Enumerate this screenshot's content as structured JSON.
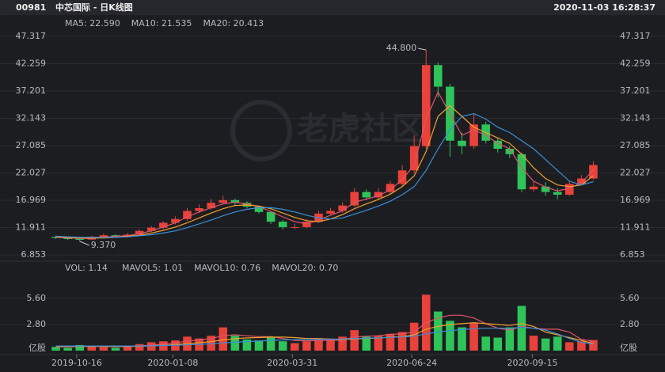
{
  "header": {
    "code": "00981",
    "title": "中芯国际 - 日K线图",
    "timestamp": "2020-11-03 16:28:37"
  },
  "watermark": "老虎社区",
  "chart_data": [
    {
      "type": "candlestick",
      "ylim": [
        5.69,
        48.48
      ],
      "yticks": [
        47.317,
        42.259,
        37.201,
        32.143,
        27.085,
        22.027,
        16.969,
        11.911,
        6.853
      ],
      "up_color": "#e8423a",
      "down_color": "#2fc45a",
      "open": [
        10.2,
        10.0,
        9.8,
        9.7,
        10.2,
        10.5,
        10.3,
        10.6,
        11.3,
        11.9,
        12.8,
        13.5,
        15.0,
        15.5,
        16.5,
        17.0,
        16.5,
        15.8,
        14.8,
        13.0,
        12.0,
        12.0,
        13.0,
        14.5,
        15.0,
        16.0,
        18.5,
        17.5,
        18.5,
        20.0,
        22.5,
        27.0,
        42.0,
        38.0,
        28.0,
        27.0,
        31.0,
        28.0,
        26.5,
        25.5,
        19.0,
        19.5,
        18.5,
        18.0,
        20.0,
        21.0
      ],
      "high": [
        10.4,
        10.2,
        9.9,
        10.4,
        10.8,
        10.7,
        10.9,
        11.6,
        12.2,
        13.1,
        14.0,
        15.5,
        16.2,
        17.2,
        17.8,
        17.3,
        16.8,
        16.0,
        15.0,
        13.3,
        12.6,
        13.5,
        15.0,
        15.6,
        16.6,
        19.2,
        19.0,
        19.2,
        20.6,
        23.5,
        29.0,
        44.8,
        42.5,
        38.5,
        29.5,
        33.0,
        31.5,
        28.5,
        27.0,
        25.8,
        20.5,
        20.3,
        19.2,
        20.6,
        21.6,
        24.2
      ],
      "low": [
        9.8,
        9.6,
        9.37,
        9.6,
        10.0,
        10.1,
        10.2,
        10.4,
        11.1,
        11.6,
        12.5,
        13.2,
        14.6,
        15.2,
        16.2,
        16.0,
        15.5,
        14.5,
        12.6,
        11.6,
        11.6,
        11.8,
        12.8,
        14.2,
        14.7,
        15.7,
        17.0,
        17.2,
        18.1,
        19.6,
        22.0,
        26.5,
        36.0,
        25.0,
        25.5,
        26.5,
        27.5,
        25.8,
        24.8,
        18.5,
        18.6,
        17.8,
        17.2,
        17.8,
        19.8,
        20.8
      ],
      "close": [
        10.0,
        9.8,
        9.7,
        10.2,
        10.5,
        10.3,
        10.6,
        11.3,
        11.9,
        12.8,
        13.5,
        15.0,
        15.5,
        16.5,
        17.0,
        16.5,
        15.8,
        14.8,
        13.0,
        12.0,
        12.0,
        13.0,
        14.5,
        15.0,
        16.0,
        18.5,
        17.5,
        18.5,
        20.0,
        22.5,
        27.0,
        42.0,
        38.0,
        28.0,
        27.0,
        31.0,
        28.0,
        26.5,
        25.5,
        19.0,
        19.5,
        18.5,
        18.0,
        20.0,
        21.0,
        23.5
      ],
      "series": [
        {
          "name": "MA5: 22.590",
          "color": "#e05568",
          "values": [
            10.1,
            10.0,
            9.9,
            9.9,
            10.1,
            10.3,
            10.4,
            10.8,
            11.3,
            12.0,
            12.8,
            13.9,
            14.8,
            15.6,
            16.3,
            16.6,
            16.3,
            15.8,
            14.9,
            13.9,
            13.0,
            12.6,
            13.3,
            14.2,
            15.0,
            16.6,
            17.2,
            17.8,
            18.9,
            20.8,
            23.5,
            32.0,
            37.0,
            33.0,
            29.0,
            30.0,
            29.0,
            27.5,
            26.5,
            23.0,
            20.5,
            19.4,
            18.7,
            19.2,
            20.2,
            22.59
          ]
        },
        {
          "name": "MA10: 21.535",
          "color": "#f0a030",
          "values": [
            10.2,
            10.1,
            10.0,
            10.0,
            10.0,
            10.1,
            10.3,
            10.5,
            10.9,
            11.4,
            12.0,
            12.8,
            13.7,
            14.6,
            15.4,
            16.0,
            16.1,
            15.9,
            15.4,
            14.6,
            13.8,
            13.2,
            13.0,
            13.5,
            14.3,
            15.4,
            16.3,
            17.1,
            18.1,
            19.5,
            21.5,
            26.0,
            32.5,
            34.5,
            32.5,
            30.5,
            29.5,
            28.5,
            27.5,
            25.5,
            23.0,
            21.0,
            19.8,
            19.5,
            19.8,
            21.535
          ]
        },
        {
          "name": "MA20: 20.413",
          "color": "#3a8fd8",
          "values": [
            10.3,
            10.2,
            10.1,
            10.1,
            10.1,
            10.1,
            10.2,
            10.4,
            10.6,
            10.9,
            11.3,
            11.9,
            12.6,
            13.3,
            14.1,
            14.8,
            15.3,
            15.6,
            15.6,
            15.3,
            14.8,
            14.2,
            13.7,
            13.5,
            13.7,
            14.4,
            15.1,
            15.9,
            16.8,
            18.0,
            19.5,
            22.5,
            26.5,
            30.0,
            32.5,
            33.0,
            32.0,
            30.5,
            29.5,
            28.0,
            26.5,
            24.5,
            22.5,
            20.5,
            19.8,
            20.413
          ]
        }
      ],
      "annotations": [
        {
          "value": 44.8,
          "label": "44.800"
        },
        {
          "value": 9.37,
          "label": "9.370"
        }
      ]
    },
    {
      "type": "bar",
      "legend_title": "VOL: 1.14",
      "ylim": [
        0,
        7.9
      ],
      "yticks": [
        {
          "value": 5.6,
          "label": "5.60"
        },
        {
          "value": 2.8,
          "label": "2.80"
        }
      ],
      "unit": "亿股",
      "values": [
        0.4,
        0.3,
        0.6,
        0.5,
        0.4,
        0.3,
        0.5,
        0.7,
        0.9,
        1.0,
        1.1,
        1.5,
        1.3,
        1.6,
        2.5,
        1.6,
        1.2,
        1.1,
        1.4,
        1.0,
        0.8,
        1.0,
        1.3,
        1.2,
        1.5,
        2.2,
        1.5,
        1.6,
        1.8,
        2.0,
        3.0,
        6.0,
        4.2,
        3.2,
        2.5,
        3.0,
        1.5,
        1.4,
        2.5,
        4.8,
        1.6,
        1.3,
        1.5,
        0.9,
        1.0,
        1.14
      ],
      "series": [
        {
          "name": "MAVOL5: 1.01",
          "color": "#e05568",
          "values": [
            0.4,
            0.4,
            0.45,
            0.45,
            0.45,
            0.42,
            0.45,
            0.5,
            0.6,
            0.7,
            0.85,
            1.0,
            1.15,
            1.3,
            1.6,
            1.7,
            1.6,
            1.5,
            1.5,
            1.3,
            1.1,
            1.05,
            1.1,
            1.1,
            1.15,
            1.45,
            1.55,
            1.6,
            1.75,
            1.8,
            2.0,
            3.0,
            3.5,
            3.8,
            3.8,
            3.5,
            2.9,
            2.4,
            2.2,
            2.6,
            2.4,
            2.3,
            2.3,
            2.0,
            1.2,
            1.01
          ]
        },
        {
          "name": "MAVOL10: 0.76",
          "color": "#f0a030",
          "values": [
            0.45,
            0.45,
            0.45,
            0.45,
            0.45,
            0.45,
            0.45,
            0.47,
            0.52,
            0.58,
            0.65,
            0.75,
            0.85,
            0.97,
            1.15,
            1.28,
            1.37,
            1.4,
            1.45,
            1.45,
            1.4,
            1.3,
            1.3,
            1.25,
            1.2,
            1.25,
            1.3,
            1.35,
            1.45,
            1.5,
            1.7,
            2.3,
            2.6,
            2.8,
            2.9,
            3.0,
            2.9,
            2.8,
            2.7,
            2.9,
            2.6,
            2.0,
            1.7,
            1.4,
            1.1,
            0.76
          ]
        },
        {
          "name": "MAVOL20: 0.70",
          "color": "#3a8fd8",
          "values": [
            0.5,
            0.5,
            0.5,
            0.5,
            0.5,
            0.5,
            0.5,
            0.5,
            0.52,
            0.55,
            0.58,
            0.62,
            0.67,
            0.73,
            0.82,
            0.9,
            0.97,
            1.03,
            1.1,
            1.15,
            1.18,
            1.2,
            1.22,
            1.23,
            1.25,
            1.3,
            1.33,
            1.37,
            1.42,
            1.47,
            1.55,
            1.8,
            2.0,
            2.15,
            2.25,
            2.35,
            2.4,
            2.4,
            2.4,
            2.5,
            2.4,
            2.2,
            1.8,
            1.3,
            0.9,
            0.7
          ]
        }
      ],
      "xticks": [
        {
          "value": 1.75,
          "label": "2019-10-16"
        },
        {
          "value": 9.8,
          "label": "2020-01-08"
        },
        {
          "value": 19.8,
          "label": "2020-03-31"
        },
        {
          "value": 29.8,
          "label": "2020-06-24"
        },
        {
          "value": 39.9,
          "label": "2020-09-15"
        }
      ]
    }
  ]
}
